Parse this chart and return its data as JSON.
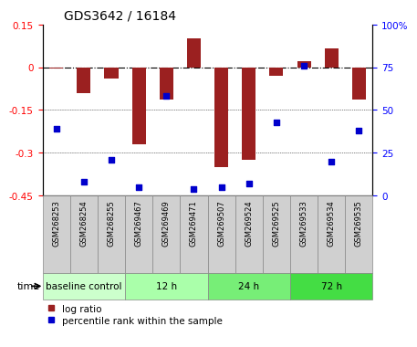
{
  "title": "GDS3642 / 16184",
  "samples": [
    "GSM268253",
    "GSM268254",
    "GSM268255",
    "GSM269467",
    "GSM269469",
    "GSM269471",
    "GSM269507",
    "GSM269524",
    "GSM269525",
    "GSM269533",
    "GSM269534",
    "GSM269535"
  ],
  "log_ratio": [
    -0.005,
    -0.09,
    -0.04,
    -0.27,
    -0.115,
    0.1,
    -0.35,
    -0.325,
    -0.03,
    0.02,
    0.065,
    -0.115
  ],
  "percentile": [
    39,
    8,
    21,
    5,
    58,
    4,
    5,
    7,
    43,
    76,
    20,
    38
  ],
  "bar_color": "#9B2020",
  "dot_color": "#0000CC",
  "ylim_left": [
    -0.45,
    0.15
  ],
  "ylim_right": [
    0,
    100
  ],
  "yticks_left": [
    0.15,
    0.0,
    -0.15,
    -0.3,
    -0.45
  ],
  "yticks_right": [
    100,
    75,
    50,
    25,
    0
  ],
  "group_labels": [
    "baseline control",
    "12 h",
    "24 h",
    "72 h"
  ],
  "group_starts": [
    0,
    3,
    6,
    9
  ],
  "group_ends": [
    3,
    6,
    9,
    12
  ],
  "group_colors": [
    "#CCFFCC",
    "#AAFFAA",
    "#77EE77",
    "#44DD44"
  ],
  "time_label": "time",
  "legend_log_ratio": "log ratio",
  "legend_percentile": "percentile rank within the sample",
  "bar_width": 0.5
}
